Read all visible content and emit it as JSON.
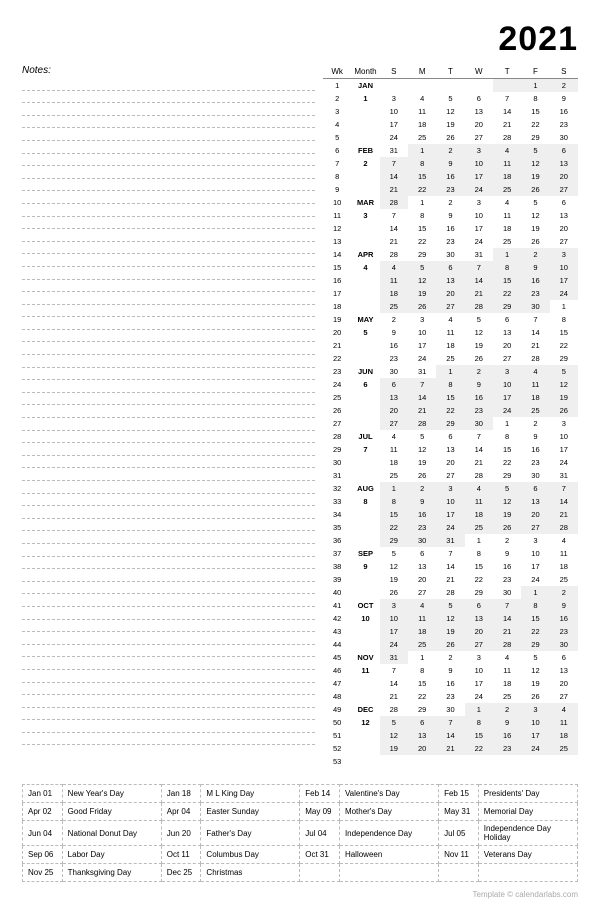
{
  "year": "2021",
  "notes_label": "Notes:",
  "notes_lines": 53,
  "headers": {
    "wk": "Wk",
    "month": "Month",
    "days": [
      "S",
      "M",
      "T",
      "W",
      "T",
      "F",
      "S"
    ]
  },
  "months": [
    {
      "abbr": "JAN",
      "num": "1",
      "rows": [
        {
          "wk": 1,
          "d": [
            "",
            "",
            "",
            "",
            "",
            "1",
            "2"
          ],
          "off": [
            4,
            5,
            6
          ]
        },
        {
          "wk": 2,
          "d": [
            "3",
            "4",
            "5",
            "6",
            "7",
            "8",
            "9"
          ],
          "off": []
        },
        {
          "wk": 3,
          "d": [
            "10",
            "11",
            "12",
            "13",
            "14",
            "15",
            "16"
          ],
          "off": []
        },
        {
          "wk": 4,
          "d": [
            "17",
            "18",
            "19",
            "20",
            "21",
            "22",
            "23"
          ],
          "off": []
        },
        {
          "wk": 5,
          "d": [
            "24",
            "25",
            "26",
            "27",
            "28",
            "29",
            "30"
          ],
          "off": []
        }
      ]
    },
    {
      "abbr": "FEB",
      "num": "2",
      "rows": [
        {
          "wk": 6,
          "d": [
            "31",
            "1",
            "2",
            "3",
            "4",
            "5",
            "6"
          ],
          "off": [
            1,
            2,
            3,
            4,
            5,
            6
          ]
        },
        {
          "wk": 7,
          "d": [
            "7",
            "8",
            "9",
            "10",
            "11",
            "12",
            "13"
          ],
          "off": [
            0,
            1,
            2,
            3,
            4,
            5,
            6
          ]
        },
        {
          "wk": 8,
          "d": [
            "14",
            "15",
            "16",
            "17",
            "18",
            "19",
            "20"
          ],
          "off": [
            0,
            1,
            2,
            3,
            4,
            5,
            6
          ]
        },
        {
          "wk": 9,
          "d": [
            "21",
            "22",
            "23",
            "24",
            "25",
            "26",
            "27"
          ],
          "off": [
            0,
            1,
            2,
            3,
            4,
            5,
            6
          ]
        }
      ]
    },
    {
      "abbr": "MAR",
      "num": "3",
      "rows": [
        {
          "wk": 10,
          "d": [
            "28",
            "1",
            "2",
            "3",
            "4",
            "5",
            "6"
          ],
          "off": [
            0
          ]
        },
        {
          "wk": 11,
          "d": [
            "7",
            "8",
            "9",
            "10",
            "11",
            "12",
            "13"
          ],
          "off": []
        },
        {
          "wk": 12,
          "d": [
            "14",
            "15",
            "16",
            "17",
            "18",
            "19",
            "20"
          ],
          "off": []
        },
        {
          "wk": 13,
          "d": [
            "21",
            "22",
            "23",
            "24",
            "25",
            "26",
            "27"
          ],
          "off": []
        }
      ]
    },
    {
      "abbr": "APR",
      "num": "4",
      "rows": [
        {
          "wk": 14,
          "d": [
            "28",
            "29",
            "30",
            "31",
            "1",
            "2",
            "3"
          ],
          "off": [
            4,
            5,
            6
          ]
        },
        {
          "wk": 15,
          "d": [
            "4",
            "5",
            "6",
            "7",
            "8",
            "9",
            "10"
          ],
          "off": [
            0,
            1,
            2,
            3,
            4,
            5,
            6
          ]
        },
        {
          "wk": 16,
          "d": [
            "11",
            "12",
            "13",
            "14",
            "15",
            "16",
            "17"
          ],
          "off": [
            0,
            1,
            2,
            3,
            4,
            5,
            6
          ]
        },
        {
          "wk": 17,
          "d": [
            "18",
            "19",
            "20",
            "21",
            "22",
            "23",
            "24"
          ],
          "off": [
            0,
            1,
            2,
            3,
            4,
            5,
            6
          ]
        },
        {
          "wk": 18,
          "d": [
            "25",
            "26",
            "27",
            "28",
            "29",
            "30",
            "1"
          ],
          "off": [
            0,
            1,
            2,
            3,
            4,
            5
          ]
        }
      ]
    },
    {
      "abbr": "MAY",
      "num": "5",
      "rows": [
        {
          "wk": 19,
          "d": [
            "2",
            "3",
            "4",
            "5",
            "6",
            "7",
            "8"
          ],
          "off": []
        },
        {
          "wk": 20,
          "d": [
            "9",
            "10",
            "11",
            "12",
            "13",
            "14",
            "15"
          ],
          "off": []
        },
        {
          "wk": 21,
          "d": [
            "16",
            "17",
            "18",
            "19",
            "20",
            "21",
            "22"
          ],
          "off": []
        },
        {
          "wk": 22,
          "d": [
            "23",
            "24",
            "25",
            "26",
            "27",
            "28",
            "29"
          ],
          "off": []
        }
      ]
    },
    {
      "abbr": "JUN",
      "num": "6",
      "rows": [
        {
          "wk": 23,
          "d": [
            "30",
            "31",
            "1",
            "2",
            "3",
            "4",
            "5"
          ],
          "off": [
            2,
            3,
            4,
            5,
            6
          ]
        },
        {
          "wk": 24,
          "d": [
            "6",
            "7",
            "8",
            "9",
            "10",
            "11",
            "12"
          ],
          "off": [
            0,
            1,
            2,
            3,
            4,
            5,
            6
          ]
        },
        {
          "wk": 25,
          "d": [
            "13",
            "14",
            "15",
            "16",
            "17",
            "18",
            "19"
          ],
          "off": [
            0,
            1,
            2,
            3,
            4,
            5,
            6
          ]
        },
        {
          "wk": 26,
          "d": [
            "20",
            "21",
            "22",
            "23",
            "24",
            "25",
            "26"
          ],
          "off": [
            0,
            1,
            2,
            3,
            4,
            5,
            6
          ]
        },
        {
          "wk": 27,
          "d": [
            "27",
            "28",
            "29",
            "30",
            "1",
            "2",
            "3"
          ],
          "off": [
            0,
            1,
            2,
            3
          ]
        }
      ]
    },
    {
      "abbr": "JUL",
      "num": "7",
      "rows": [
        {
          "wk": 28,
          "d": [
            "4",
            "5",
            "6",
            "7",
            "8",
            "9",
            "10"
          ],
          "off": []
        },
        {
          "wk": 29,
          "d": [
            "11",
            "12",
            "13",
            "14",
            "15",
            "16",
            "17"
          ],
          "off": []
        },
        {
          "wk": 30,
          "d": [
            "18",
            "19",
            "20",
            "21",
            "22",
            "23",
            "24"
          ],
          "off": []
        },
        {
          "wk": 31,
          "d": [
            "25",
            "26",
            "27",
            "28",
            "29",
            "30",
            "31"
          ],
          "off": []
        }
      ]
    },
    {
      "abbr": "AUG",
      "num": "8",
      "rows": [
        {
          "wk": 32,
          "d": [
            "1",
            "2",
            "3",
            "4",
            "5",
            "6",
            "7"
          ],
          "off": [
            0,
            1,
            2,
            3,
            4,
            5,
            6
          ]
        },
        {
          "wk": 33,
          "d": [
            "8",
            "9",
            "10",
            "11",
            "12",
            "13",
            "14"
          ],
          "off": [
            0,
            1,
            2,
            3,
            4,
            5,
            6
          ]
        },
        {
          "wk": 34,
          "d": [
            "15",
            "16",
            "17",
            "18",
            "19",
            "20",
            "21"
          ],
          "off": [
            0,
            1,
            2,
            3,
            4,
            5,
            6
          ]
        },
        {
          "wk": 35,
          "d": [
            "22",
            "23",
            "24",
            "25",
            "26",
            "27",
            "28"
          ],
          "off": [
            0,
            1,
            2,
            3,
            4,
            5,
            6
          ]
        },
        {
          "wk": 36,
          "d": [
            "29",
            "30",
            "31",
            "1",
            "2",
            "3",
            "4"
          ],
          "off": [
            0,
            1,
            2
          ]
        }
      ]
    },
    {
      "abbr": "SEP",
      "num": "9",
      "rows": [
        {
          "wk": 37,
          "d": [
            "5",
            "6",
            "7",
            "8",
            "9",
            "10",
            "11"
          ],
          "off": []
        },
        {
          "wk": 38,
          "d": [
            "12",
            "13",
            "14",
            "15",
            "16",
            "17",
            "18"
          ],
          "off": []
        },
        {
          "wk": 39,
          "d": [
            "19",
            "20",
            "21",
            "22",
            "23",
            "24",
            "25"
          ],
          "off": []
        },
        {
          "wk": 40,
          "d": [
            "26",
            "27",
            "28",
            "29",
            "30",
            "1",
            "2"
          ],
          "off": [
            5,
            6
          ]
        }
      ]
    },
    {
      "abbr": "OCT",
      "num": "10",
      "rows": [
        {
          "wk": 41,
          "d": [
            "3",
            "4",
            "5",
            "6",
            "7",
            "8",
            "9"
          ],
          "off": [
            0,
            1,
            2,
            3,
            4,
            5,
            6
          ]
        },
        {
          "wk": 42,
          "d": [
            "10",
            "11",
            "12",
            "13",
            "14",
            "15",
            "16"
          ],
          "off": [
            0,
            1,
            2,
            3,
            4,
            5,
            6
          ]
        },
        {
          "wk": 43,
          "d": [
            "17",
            "18",
            "19",
            "20",
            "21",
            "22",
            "23"
          ],
          "off": [
            0,
            1,
            2,
            3,
            4,
            5,
            6
          ]
        },
        {
          "wk": 44,
          "d": [
            "24",
            "25",
            "26",
            "27",
            "28",
            "29",
            "30"
          ],
          "off": [
            0,
            1,
            2,
            3,
            4,
            5,
            6
          ]
        }
      ]
    },
    {
      "abbr": "NOV",
      "num": "11",
      "rows": [
        {
          "wk": 45,
          "d": [
            "31",
            "1",
            "2",
            "3",
            "4",
            "5",
            "6"
          ],
          "off": [
            0
          ]
        },
        {
          "wk": 46,
          "d": [
            "7",
            "8",
            "9",
            "10",
            "11",
            "12",
            "13"
          ],
          "off": []
        },
        {
          "wk": 47,
          "d": [
            "14",
            "15",
            "16",
            "17",
            "18",
            "19",
            "20"
          ],
          "off": []
        },
        {
          "wk": 48,
          "d": [
            "21",
            "22",
            "23",
            "24",
            "25",
            "26",
            "27"
          ],
          "off": []
        }
      ]
    },
    {
      "abbr": "DEC",
      "num": "12",
      "rows": [
        {
          "wk": 49,
          "d": [
            "28",
            "29",
            "30",
            "1",
            "2",
            "3",
            "4"
          ],
          "off": [
            3,
            4,
            5,
            6
          ]
        },
        {
          "wk": 50,
          "d": [
            "5",
            "6",
            "7",
            "8",
            "9",
            "10",
            "11"
          ],
          "off": [
            0,
            1,
            2,
            3,
            4,
            5,
            6
          ]
        },
        {
          "wk": 51,
          "d": [
            "12",
            "13",
            "14",
            "15",
            "16",
            "17",
            "18"
          ],
          "off": [
            0,
            1,
            2,
            3,
            4,
            5,
            6
          ]
        },
        {
          "wk": 52,
          "d": [
            "19",
            "20",
            "21",
            "22",
            "23",
            "24",
            "25"
          ],
          "off": [
            0,
            1,
            2,
            3,
            4,
            5,
            6
          ]
        },
        {
          "wk": 53,
          "d": [
            "",
            "",
            "",
            "",
            "",
            "",
            ""
          ],
          "off": []
        }
      ]
    }
  ],
  "holidays": [
    [
      [
        "Jan 01",
        "New Year's Day"
      ],
      [
        "Jan 18",
        "M L King Day"
      ],
      [
        "Feb 14",
        "Valentine's Day"
      ],
      [
        "Feb 15",
        "Presidents' Day"
      ]
    ],
    [
      [
        "Apr 02",
        "Good Friday"
      ],
      [
        "Apr 04",
        "Easter Sunday"
      ],
      [
        "May 09",
        "Mother's Day"
      ],
      [
        "May 31",
        "Memorial Day"
      ]
    ],
    [
      [
        "Jun 04",
        "National Donut Day"
      ],
      [
        "Jun 20",
        "Father's Day"
      ],
      [
        "Jul 04",
        "Independence Day"
      ],
      [
        "Jul 05",
        "Independence Day Holiday"
      ]
    ],
    [
      [
        "Sep 06",
        "Labor Day"
      ],
      [
        "Oct  11",
        "Columbus  Day"
      ],
      [
        "Oct 31",
        "Halloween"
      ],
      [
        "Nov 11",
        "Veterans Day"
      ]
    ],
    [
      [
        "Nov 25",
        "Thanksgiving Day"
      ],
      [
        "Dec 25",
        "Christmas"
      ],
      [
        "",
        ""
      ],
      [
        "",
        ""
      ]
    ]
  ],
  "footer": "Template © calendarlabs.com"
}
